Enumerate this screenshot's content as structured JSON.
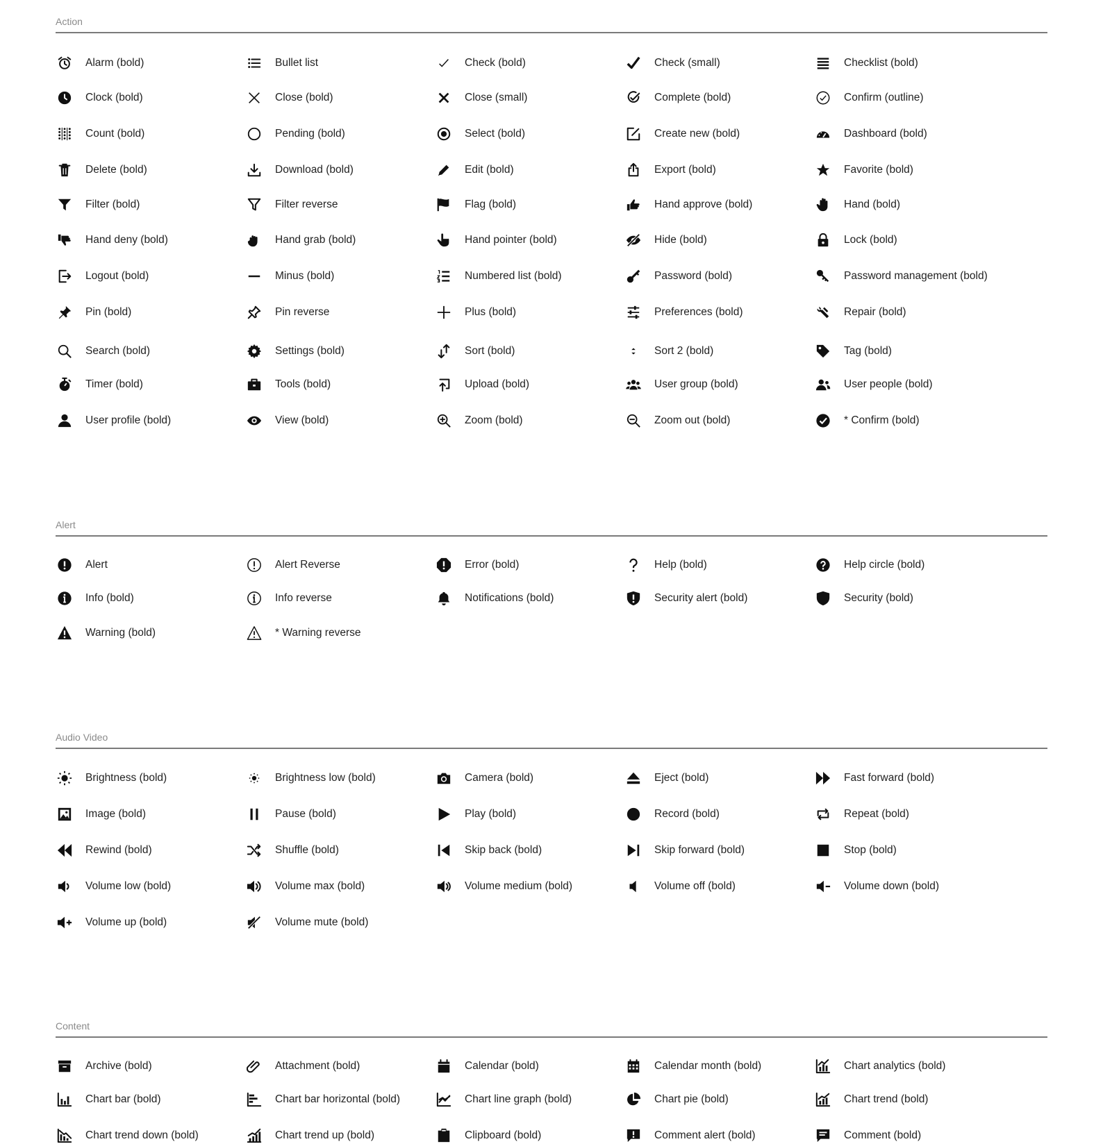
{
  "sections": [
    {
      "title": "Action",
      "rows": [
        [
          {
            "label": "Alarm (bold)",
            "icon": "alarm-icon"
          },
          {
            "label": "Bullet list",
            "icon": "bullet-list-icon"
          },
          {
            "label": "Check (bold)",
            "icon": "check-thin-icon"
          },
          {
            "label": "Check (small)",
            "icon": "check-heavy-icon"
          },
          {
            "label": "Checklist (bold)",
            "icon": "checklist-icon"
          }
        ],
        [
          {
            "label": "Clock (bold)",
            "icon": "clock-icon"
          },
          {
            "label": "Close (bold)",
            "icon": "close-thin-icon"
          },
          {
            "label": "Close (small)",
            "icon": "close-bold-icon"
          },
          {
            "label": "Complete (bold)",
            "icon": "complete-icon"
          },
          {
            "label": "Confirm (outline)",
            "icon": "confirm-outline-icon"
          }
        ],
        [
          {
            "label": "Count (bold)",
            "icon": "count-icon"
          },
          {
            "label": "Pending (bold)",
            "icon": "pending-icon"
          },
          {
            "label": "Select (bold)",
            "icon": "select-icon"
          },
          {
            "label": "Create new (bold)",
            "icon": "create-new-icon"
          },
          {
            "label": "Dashboard (bold)",
            "icon": "dashboard-icon"
          }
        ],
        [
          {
            "label": "Delete (bold)",
            "icon": "delete-icon"
          },
          {
            "label": "Download (bold)",
            "icon": "download-icon"
          },
          {
            "label": "Edit (bold)",
            "icon": "edit-icon"
          },
          {
            "label": "Export (bold)",
            "icon": "export-icon"
          },
          {
            "label": "Favorite (bold)",
            "icon": "favorite-icon"
          }
        ],
        [
          {
            "label": "Filter (bold)",
            "icon": "filter-icon"
          },
          {
            "label": "Filter reverse",
            "icon": "filter-reverse-icon"
          },
          {
            "label": "Flag (bold)",
            "icon": "flag-icon"
          },
          {
            "label": "Hand approve (bold)",
            "icon": "hand-approve-icon"
          },
          {
            "label": "Hand (bold)",
            "icon": "hand-icon"
          }
        ],
        [
          {
            "label": "Hand deny (bold)",
            "icon": "hand-deny-icon"
          },
          {
            "label": "Hand grab (bold)",
            "icon": "hand-grab-icon"
          },
          {
            "label": "Hand pointer (bold)",
            "icon": "hand-pointer-icon"
          },
          {
            "label": "Hide (bold)",
            "icon": "hide-icon"
          },
          {
            "label": "Lock (bold)",
            "icon": "lock-icon"
          }
        ],
        [
          {
            "label": "Logout (bold)",
            "icon": "logout-icon"
          },
          {
            "label": "Minus (bold)",
            "icon": "minus-icon"
          },
          {
            "label": "Numbered list (bold)",
            "icon": "numbered-list-icon"
          },
          {
            "label": "Password (bold)",
            "icon": "password-icon"
          },
          {
            "label": "Password management (bold)",
            "icon": "password-management-icon"
          }
        ],
        [
          {
            "label": "Pin (bold)",
            "icon": "pin-icon"
          },
          {
            "label": "Pin reverse",
            "icon": "pin-reverse-icon"
          },
          {
            "label": "Plus (bold)",
            "icon": "plus-icon"
          },
          {
            "label": "Preferences (bold)",
            "icon": "preferences-icon"
          },
          {
            "label": "Repair (bold)",
            "icon": "repair-icon"
          }
        ],
        [
          {
            "label": "Search (bold)",
            "icon": "search-icon"
          },
          {
            "label": "Settings (bold)",
            "icon": "settings-icon"
          },
          {
            "label": "Sort (bold)",
            "icon": "sort-icon"
          },
          {
            "label": "Sort 2  (bold)",
            "icon": "sort-2-icon"
          },
          {
            "label": "Tag (bold)",
            "icon": "tag-icon"
          }
        ],
        [
          {
            "label": "Timer (bold)",
            "icon": "timer-icon"
          },
          {
            "label": "Tools (bold)",
            "icon": "tools-icon"
          },
          {
            "label": "Upload (bold)",
            "icon": "upload-icon"
          },
          {
            "label": "User group (bold)",
            "icon": "user-group-icon"
          },
          {
            "label": "User people (bold)",
            "icon": "user-people-icon"
          }
        ],
        [
          {
            "label": "User profile (bold)",
            "icon": "user-profile-icon"
          },
          {
            "label": "View (bold)",
            "icon": "view-icon"
          },
          {
            "label": "Zoom (bold)",
            "icon": "zoom-in-icon"
          },
          {
            "label": "Zoom out (bold)",
            "icon": "zoom-out-icon"
          },
          {
            "label": "* Confirm (bold)",
            "icon": "confirm-filled-icon"
          }
        ]
      ]
    },
    {
      "title": "Alert",
      "rows": [
        [
          {
            "label": "Alert",
            "icon": "alert-icon"
          },
          {
            "label": "Alert Reverse",
            "icon": "alert-reverse-icon"
          },
          {
            "label": "Error (bold)",
            "icon": "error-icon"
          },
          {
            "label": "Help (bold)",
            "icon": "help-icon"
          },
          {
            "label": "Help circle (bold)",
            "icon": "help-circle-icon"
          }
        ],
        [
          {
            "label": "Info (bold)",
            "icon": "info-icon"
          },
          {
            "label": "Info reverse",
            "icon": "info-reverse-icon"
          },
          {
            "label": "Notifications (bold)",
            "icon": "notifications-icon"
          },
          {
            "label": "Security alert (bold)",
            "icon": "security-alert-icon"
          },
          {
            "label": "Security (bold)",
            "icon": "security-icon"
          }
        ],
        [
          {
            "label": "Warning (bold)",
            "icon": "warning-icon"
          },
          {
            "label": "* Warning reverse",
            "icon": "warning-reverse-icon"
          }
        ]
      ]
    },
    {
      "title": "Audio Video",
      "rows": [
        [
          {
            "label": "Brightness (bold)",
            "icon": "brightness-icon"
          },
          {
            "label": "Brightness low (bold)",
            "icon": "brightness-low-icon"
          },
          {
            "label": "Camera (bold)",
            "icon": "camera-icon"
          },
          {
            "label": "Eject (bold)",
            "icon": "eject-icon"
          },
          {
            "label": "Fast forward (bold)",
            "icon": "fast-forward-icon"
          }
        ],
        [
          {
            "label": "Image (bold)",
            "icon": "image-icon"
          },
          {
            "label": "Pause (bold)",
            "icon": "pause-icon"
          },
          {
            "label": "Play (bold)",
            "icon": "play-icon"
          },
          {
            "label": "Record (bold)",
            "icon": "record-icon"
          },
          {
            "label": "Repeat (bold)",
            "icon": "repeat-icon"
          }
        ],
        [
          {
            "label": "Rewind (bold)",
            "icon": "rewind-icon"
          },
          {
            "label": "Shuffle (bold)",
            "icon": "shuffle-icon"
          },
          {
            "label": "Skip back (bold)",
            "icon": "skip-back-icon"
          },
          {
            "label": "Skip forward (bold)",
            "icon": "skip-forward-icon"
          },
          {
            "label": "Stop (bold)",
            "icon": "stop-icon"
          }
        ],
        [
          {
            "label": "Volume low (bold)",
            "icon": "volume-low-icon"
          },
          {
            "label": "Volume max (bold)",
            "icon": "volume-max-icon"
          },
          {
            "label": "Volume medium (bold)",
            "icon": "volume-medium-icon"
          },
          {
            "label": "Volume off (bold)",
            "icon": "volume-off-icon"
          },
          {
            "label": "Volume down (bold)",
            "icon": "volume-down-icon"
          }
        ],
        [
          {
            "label": "Volume up (bold)",
            "icon": "volume-up-icon"
          },
          {
            "label": "Volume mute (bold)",
            "icon": "volume-mute-icon"
          }
        ]
      ]
    },
    {
      "title": "Content",
      "rows": [
        [
          {
            "label": "Archive (bold)",
            "icon": "archive-icon"
          },
          {
            "label": "Attachment (bold)",
            "icon": "attachment-icon"
          },
          {
            "label": "Calendar (bold)",
            "icon": "calendar-icon"
          },
          {
            "label": "Calendar month (bold)",
            "icon": "calendar-month-icon"
          },
          {
            "label": "Chart analytics (bold)",
            "icon": "chart-analytics-icon"
          }
        ],
        [
          {
            "label": "Chart bar (bold)",
            "icon": "chart-bar-icon"
          },
          {
            "label": "Chart bar horizontal (bold)",
            "icon": "chart-bar-horizontal-icon"
          },
          {
            "label": "Chart line graph (bold)",
            "icon": "chart-line-graph-icon"
          },
          {
            "label": "Chart pie (bold)",
            "icon": "chart-pie-icon"
          },
          {
            "label": "Chart trend (bold)",
            "icon": "chart-trend-icon"
          }
        ],
        [
          {
            "label": "Chart trend down (bold)",
            "icon": "chart-trend-down-icon"
          },
          {
            "label": "Chart trend up (bold)",
            "icon": "chart-trend-up-icon"
          },
          {
            "label": "Clipboard (bold)",
            "icon": "clipboard-icon"
          },
          {
            "label": "Comment alert (bold)",
            "icon": "comment-alert-icon"
          },
          {
            "label": "Comment (bold)",
            "icon": "comment-icon"
          }
        ]
      ]
    }
  ]
}
